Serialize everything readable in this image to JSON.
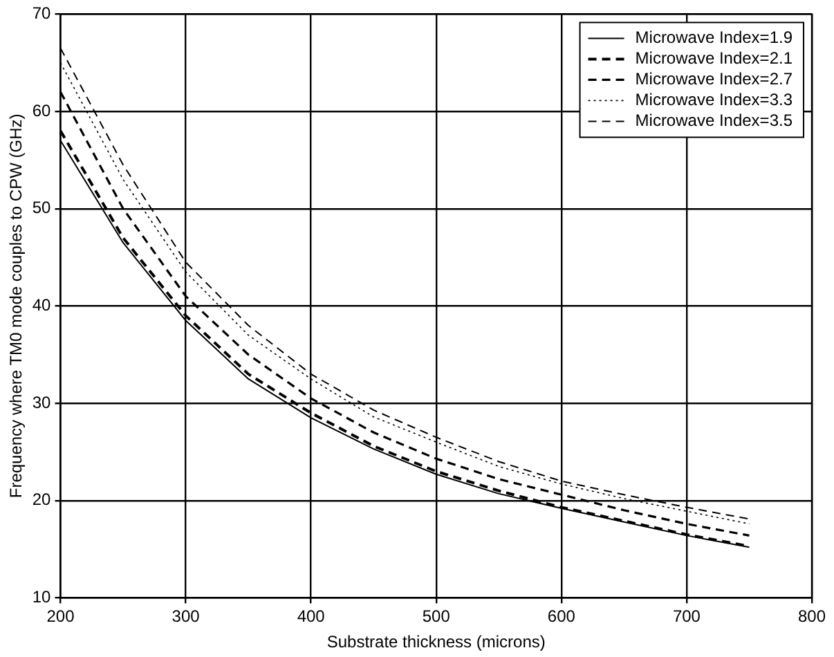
{
  "chart_data": {
    "type": "line",
    "xlabel": "Substrate thickness (microns)",
    "ylabel": "Frequency where TM0 mode couples to CPW (GHz)",
    "x": [
      200,
      250,
      300,
      350,
      400,
      450,
      500,
      550,
      600,
      650,
      700,
      750
    ],
    "xlim": [
      200,
      800
    ],
    "xticks": [
      200,
      300,
      400,
      500,
      600,
      700,
      800
    ],
    "ylim": [
      10,
      70
    ],
    "yticks": [
      10,
      20,
      30,
      40,
      50,
      60,
      70
    ],
    "grid": true,
    "legend": "top right",
    "marker": "none",
    "series": [
      {
        "name": "Microwave Index=1.9",
        "color": "#000000",
        "line_style": "solid",
        "values": [
          57,
          46.5,
          38.5,
          32.5,
          28.5,
          25.3,
          22.7,
          20.7,
          19.2,
          17.8,
          16.4,
          15.2
        ]
      },
      {
        "name": "Microwave Index=2.1",
        "color": "#000000",
        "line_style": "dashed",
        "values": [
          58,
          47,
          39,
          33,
          29,
          25.6,
          23,
          21,
          19.3,
          17.9,
          16.5,
          15.3
        ]
      },
      {
        "name": "Microwave Index=2.7",
        "color": "#000000",
        "line_style": "dashed",
        "values": [
          62,
          50,
          41,
          35,
          30.5,
          27,
          24.3,
          22.2,
          20.6,
          19,
          17.6,
          16.4
        ]
      },
      {
        "name": "Microwave Index=3.3",
        "color": "#000000",
        "line_style": "dotted",
        "values": [
          65,
          53,
          43.5,
          37,
          32.5,
          28.6,
          26,
          23.5,
          21.7,
          20.2,
          18.9,
          17.6
        ]
      },
      {
        "name": "Microwave Index=3.5",
        "color": "#000000",
        "line_style": "dashed",
        "values": [
          66.5,
          54.5,
          44.5,
          38,
          33,
          29.3,
          26.5,
          24,
          22,
          20.6,
          19.3,
          18.1
        ]
      }
    ]
  }
}
